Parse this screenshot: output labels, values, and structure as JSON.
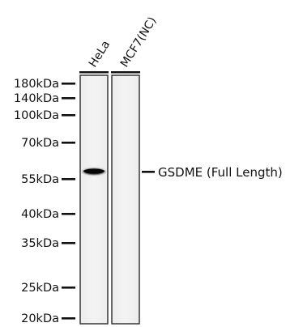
{
  "lanes": [
    {
      "label": "HeLa"
    },
    {
      "label": "MCF7(NC)"
    }
  ],
  "markers": [
    {
      "label": "180kDa",
      "kda": 180
    },
    {
      "label": "140kDa",
      "kda": 140
    },
    {
      "label": "100kDa",
      "kda": 100
    },
    {
      "label": "70kDa",
      "kda": 70
    },
    {
      "label": "55kDa",
      "kda": 55
    },
    {
      "label": "40kDa",
      "kda": 40
    },
    {
      "label": "35kDa",
      "kda": 35
    },
    {
      "label": "25kDa",
      "kda": 25
    },
    {
      "label": "20kDa",
      "kda": 20
    }
  ],
  "band": {
    "label": "GSDME (Full Length)",
    "lane": "HeLa"
  }
}
